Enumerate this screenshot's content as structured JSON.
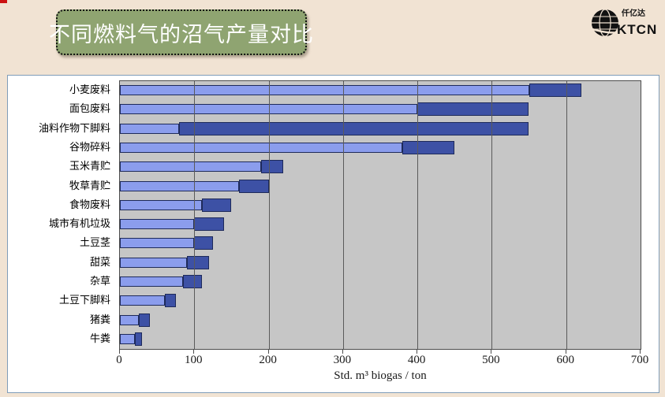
{
  "page": {
    "background": "#f1e3d3"
  },
  "header": {
    "title": "不同燃料气的沼气产量对比",
    "title_bg": "#8fa471",
    "logo": {
      "company_cn": "仟亿达",
      "company_en": "KTCN"
    }
  },
  "chart_data": {
    "type": "bar",
    "orientation": "horizontal",
    "categories": [
      "小麦废料",
      "面包废料",
      "油料作物下脚料",
      "谷物碎料",
      "玉米青贮",
      "牧草青贮",
      "食物废料",
      "城市有机垃圾",
      "土豆茎",
      "甜菜",
      "杂草",
      "土豆下脚料",
      "猪粪",
      "牛粪"
    ],
    "series": [
      {
        "name": "low-yield-segment",
        "color": "#8b9ded",
        "values": [
          550,
          400,
          80,
          380,
          190,
          160,
          110,
          100,
          100,
          90,
          85,
          60,
          25,
          20
        ]
      },
      {
        "name": "high-yield-segment",
        "color": "#3d51a5",
        "values": [
          70,
          150,
          470,
          70,
          30,
          40,
          40,
          40,
          25,
          30,
          25,
          15,
          15,
          10
        ]
      }
    ],
    "totals": [
      620,
      550,
      550,
      450,
      220,
      200,
      150,
      140,
      125,
      120,
      110,
      75,
      40,
      30
    ],
    "title": "",
    "xlabel": "Std. m³ biogas / ton",
    "ylabel": "",
    "xlim": [
      0,
      700
    ],
    "x_ticks": [
      0,
      100,
      200,
      300,
      400,
      500,
      600,
      700
    ],
    "plot_bg": "#c6c6c6",
    "gridline_color": "#5a5a5a",
    "grid": "vertical gridlines drawn over bars",
    "legend": "none"
  }
}
